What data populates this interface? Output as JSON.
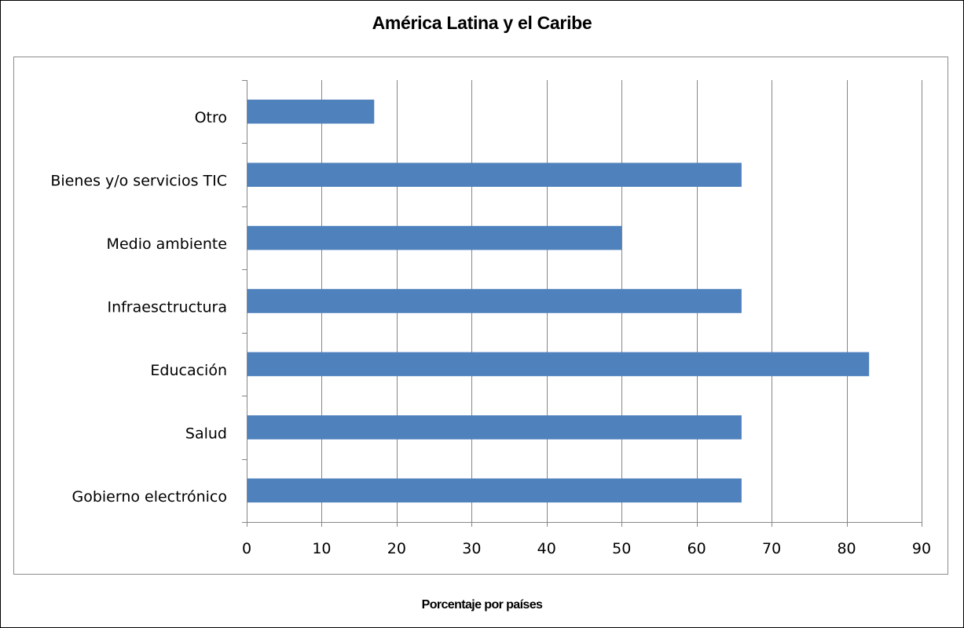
{
  "chart_data": {
    "type": "bar",
    "orientation": "horizontal",
    "title": "América Latina y el Caribe",
    "xlabel": "Porcentaje por países",
    "ylabel": "",
    "categories": [
      "Gobierno electrónico",
      "Salud",
      "Educación",
      "Infraesctructura",
      "Medio ambiente",
      "Bienes y/o servicios TIC",
      "Otro"
    ],
    "values": [
      66,
      66,
      83,
      66,
      50,
      66,
      17
    ],
    "xlim": [
      0,
      90
    ],
    "xticks": [
      "0",
      "10",
      "20",
      "30",
      "40",
      "50",
      "60",
      "70",
      "80",
      "90"
    ],
    "grid": "vertical",
    "legend": "none",
    "bar_color": "#4f81bd",
    "grid_color": "#868686"
  }
}
